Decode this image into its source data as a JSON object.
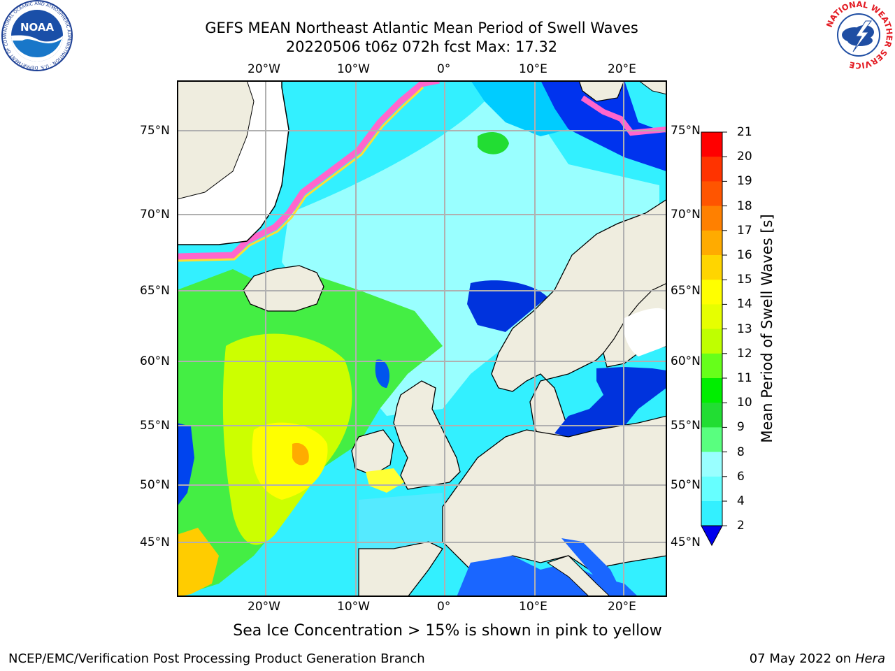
{
  "title": {
    "line1": "GEFS MEAN Northeast Atlantic Mean Period of Swell Waves",
    "line2": "20220506 t06z 072h fcst   Max: 17.32"
  },
  "map": {
    "lon_labels": [
      "20°W",
      "10°W",
      "0°",
      "10°E",
      "20°E"
    ],
    "lat_labels": [
      "75°N",
      "70°N",
      "65°N",
      "60°N",
      "55°N",
      "50°N",
      "45°N"
    ],
    "colors": {
      "land": "#efeddf",
      "ice_pink": "#ff66cc",
      "ice_yellow": "#ffdd33",
      "grid": "#b0b0b0"
    }
  },
  "colorbar": {
    "title": "Mean Period of Swell Waves [s]",
    "levels": [
      "21",
      "20",
      "19",
      "18",
      "17",
      "16",
      "15",
      "14",
      "13",
      "12",
      "11",
      "10",
      "9",
      "8",
      "6",
      "4",
      "2"
    ],
    "colors": [
      "#ff0000",
      "#ff3300",
      "#ff5500",
      "#ff8000",
      "#ffab00",
      "#ffd500",
      "#ffff00",
      "#e6ff00",
      "#bfff00",
      "#66ff1a",
      "#00ee00",
      "#22dd33",
      "#59ff7f",
      "#99ffff",
      "#66ffff",
      "#33f0ff",
      "#00e5ff",
      "#0066ff",
      "#0000ee"
    ]
  },
  "bottom_note": "Sea Ice Concentration > 15% is shown in pink to yellow",
  "footer": {
    "left": "NCEP/EMC/Verification Post Processing Product Generation Branch",
    "right_prefix": "07 May 2022 on",
    "right_italic": "Hera"
  },
  "logos": {
    "noaa_icon": "noaa-icon",
    "nws_icon": "nws-icon",
    "noaa_text": "NOAA",
    "noaa_ring": "NATIONAL OCEANIC AND ATMOSPHERIC ADMINISTRATION · U.S. DEPARTMENT OF COMMERCE",
    "nws_ring": "NATIONAL WEATHER SERVICE"
  }
}
